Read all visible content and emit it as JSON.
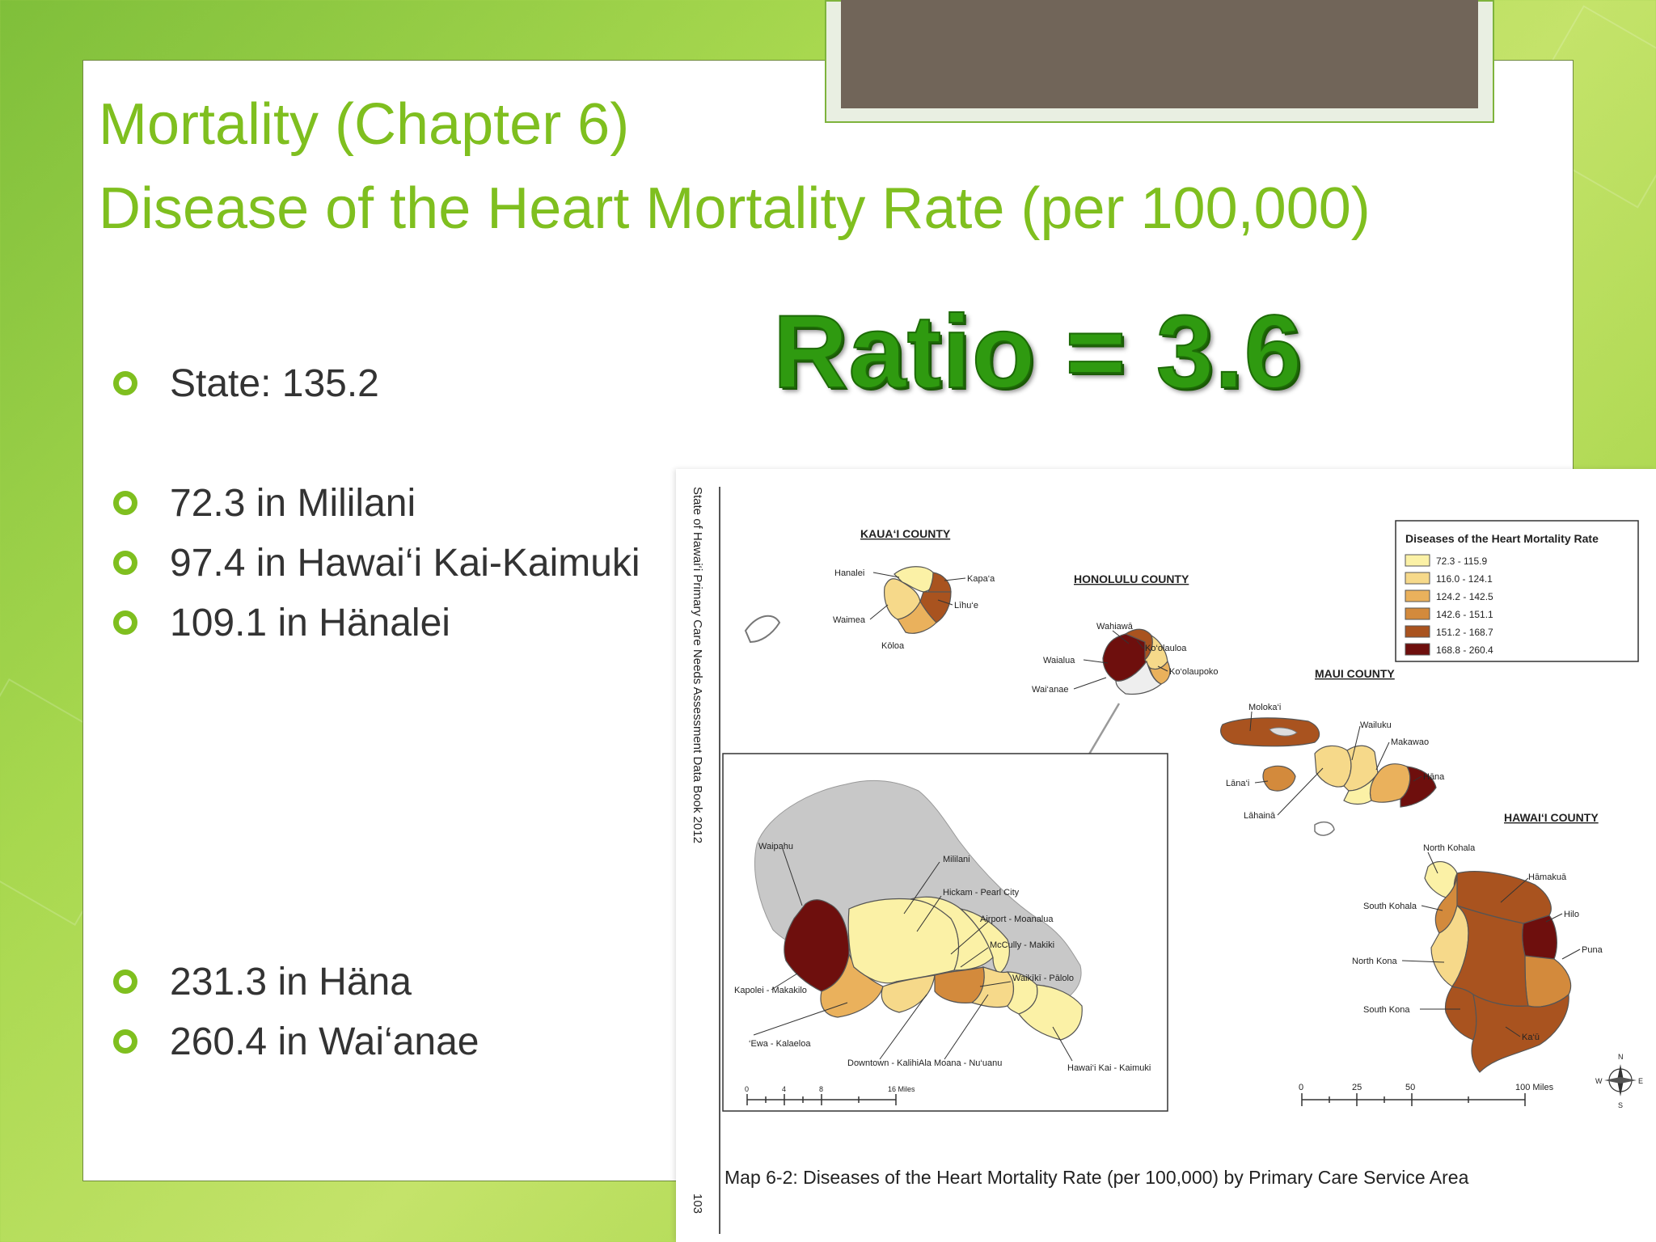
{
  "slide": {
    "title_line_1": "Mortality (Chapter 6)",
    "title_line_2": "Disease of the Heart Mortality Rate (per 100,000)",
    "ratio_text": "Ratio = 3.6",
    "bullets": [
      "State: 135.2",
      "72.3 in Mililani",
      "97.4 in Hawai‘i Kai-Kaimuki",
      "109.1 in Hänalei",
      "231.3 in Häna",
      "260.4 in Wai‘anae"
    ]
  },
  "colors": {
    "accent_green": "#7fbf1f",
    "ratio_green": "#2f9a10",
    "title_plate": "#716559"
  },
  "map": {
    "side_caption": "State of Hawai‘i Primary Care Needs Assessment Data Book 2012",
    "page_number": "103",
    "caption": "Map 6-2: Diseases of the Heart Mortality Rate (per 100,000) by Primary Care Service Area",
    "counties": {
      "kauai": "KAUA‘I COUNTY",
      "honolulu": "HONOLULU COUNTY",
      "maui": "MAUI COUNTY",
      "hawaii": "HAWAI‘I COUNTY"
    },
    "legend": {
      "title": "Diseases of the Heart Mortality Rate",
      "items": [
        {
          "label": "72.3 - 115.9",
          "color": "#fbf1a6"
        },
        {
          "label": "116.0 - 124.1",
          "color": "#f6d98a"
        },
        {
          "label": "124.2 - 142.5",
          "color": "#eab15c"
        },
        {
          "label": "142.6 - 151.1",
          "color": "#d38a3c"
        },
        {
          "label": "151.2 - 168.7",
          "color": "#a9531f"
        },
        {
          "label": "168.8 - 260.4",
          "color": "#6e0f0d"
        }
      ]
    },
    "kauai_labels": [
      "Hanalei",
      "Kapa‘a",
      "Līhu‘e",
      "Waimea",
      "Kōloa"
    ],
    "oahu_small_labels": [
      "Wahiawā",
      "Ko‘olauloa",
      "Waialua",
      "Ko‘olaupoko",
      "Wai‘anae"
    ],
    "maui_labels": [
      "Moloka‘i",
      "Wailuku",
      "Makawao",
      "Hāna",
      "Lāna‘i",
      "Lāhainā"
    ],
    "hawaii_labels": [
      "North Kohala",
      "Hāmakuā",
      "South Kohala",
      "Hilo",
      "North Kona",
      "Puna",
      "South Kona",
      "Ka‘ū"
    ],
    "oahu_inset_labels": [
      "Waipahu",
      "Mililani",
      "Hickam - Pearl City",
      "Airport - Moanalua",
      "McCully - Makiki",
      "Waikīkī - Pālolo",
      "Kapolei - Makakilo",
      "‘Ewa - Kalaeloa",
      "Downtown - Kalihi",
      "Ala Moana - Nu‘uanu",
      "Hawai‘i Kai - Kaimuki"
    ],
    "inset_scale": [
      "0",
      "4",
      "8",
      "16 Miles"
    ],
    "main_scale": [
      "0",
      "25",
      "50",
      "100 Miles"
    ],
    "compass": [
      "N",
      "E",
      "S",
      "W"
    ]
  }
}
